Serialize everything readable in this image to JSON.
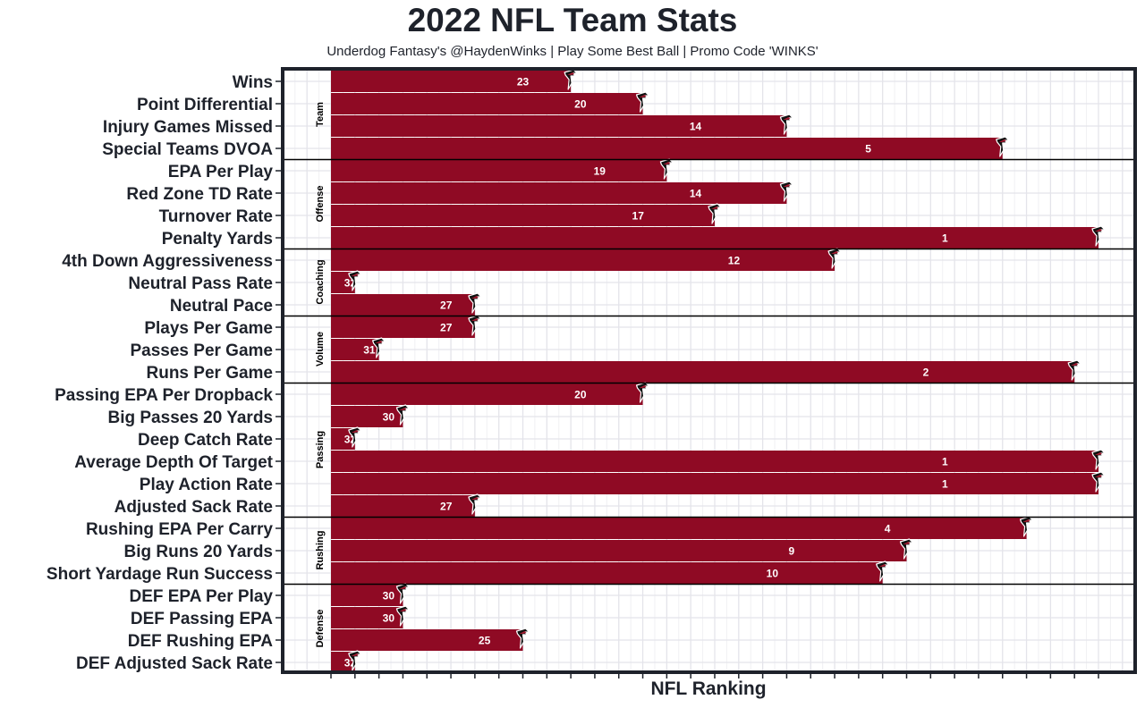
{
  "chart_data": {
    "type": "bar",
    "orientation": "horizontal",
    "title": "2022 NFL Team Stats",
    "subtitle": "Underdog Fantasy's @HaydenWinks | Play Some Best Ball | Promo Code 'WINKS'",
    "xlabel": "NFL Ranking",
    "ylabel": "",
    "x_range": [
      0,
      32
    ],
    "x_tick_count": 33,
    "bar_value_rule": "bar length = 33 - rank",
    "grid": true,
    "team_logo": "falcon-logo",
    "bar_color": "#8f0a24",
    "groups": [
      {
        "name": "Team",
        "items": [
          {
            "label": "Wins",
            "rank": 23
          },
          {
            "label": "Point Differential",
            "rank": 20
          },
          {
            "label": "Injury Games Missed",
            "rank": 14
          },
          {
            "label": "Special Teams DVOA",
            "rank": 5
          }
        ]
      },
      {
        "name": "Offense",
        "items": [
          {
            "label": "EPA Per Play",
            "rank": 19
          },
          {
            "label": "Red Zone TD Rate",
            "rank": 14
          },
          {
            "label": "Turnover Rate",
            "rank": 17
          },
          {
            "label": "Penalty Yards",
            "rank": 1
          }
        ]
      },
      {
        "name": "Coaching",
        "items": [
          {
            "label": "4th Down Aggressiveness",
            "rank": 12
          },
          {
            "label": "Neutral Pass Rate",
            "rank": 32
          },
          {
            "label": "Neutral Pace",
            "rank": 27
          }
        ]
      },
      {
        "name": "Volume",
        "items": [
          {
            "label": "Plays Per Game",
            "rank": 27
          },
          {
            "label": "Passes Per Game",
            "rank": 31
          },
          {
            "label": "Runs Per Game",
            "rank": 2
          }
        ]
      },
      {
        "name": "Passing",
        "items": [
          {
            "label": "Passing EPA Per Dropback",
            "rank": 20
          },
          {
            "label": "Big Passes 20 Yards",
            "rank": 30
          },
          {
            "label": "Deep Catch Rate",
            "rank": 32
          },
          {
            "label": "Average Depth Of Target",
            "rank": 1
          },
          {
            "label": "Play Action Rate",
            "rank": 1
          },
          {
            "label": "Adjusted Sack Rate",
            "rank": 27
          }
        ]
      },
      {
        "name": "Rushing",
        "items": [
          {
            "label": "Rushing EPA Per Carry",
            "rank": 4
          },
          {
            "label": "Big Runs 20 Yards",
            "rank": 9
          },
          {
            "label": "Short Yardage Run Success",
            "rank": 10
          }
        ]
      },
      {
        "name": "Defense",
        "items": [
          {
            "label": "DEF EPA Per Play",
            "rank": 30
          },
          {
            "label": "DEF Passing EPA",
            "rank": 30
          },
          {
            "label": "DEF Rushing EPA",
            "rank": 25
          },
          {
            "label": "DEF Adjusted Sack Rate",
            "rank": 32
          }
        ]
      }
    ]
  }
}
